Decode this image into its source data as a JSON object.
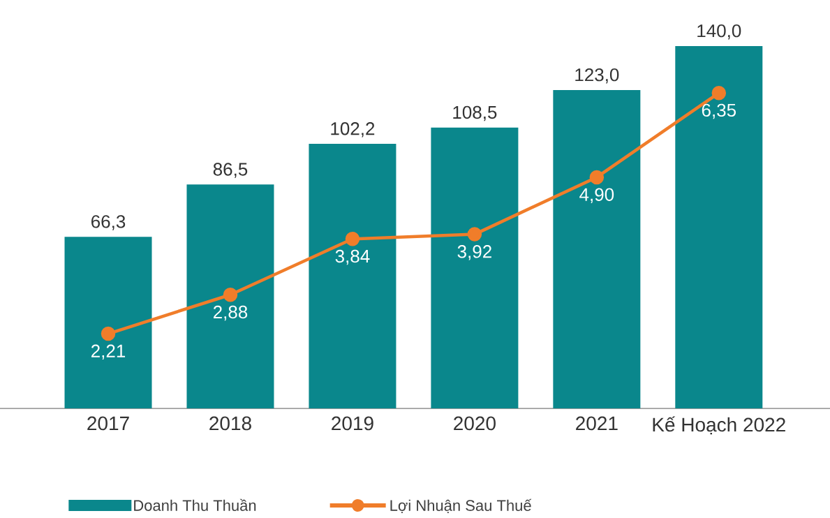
{
  "chart_data": {
    "type": "bar",
    "categories": [
      "2017",
      "2018",
      "2019",
      "2020",
      "2021",
      "Kế Hoạch 2022"
    ],
    "series": [
      {
        "name": "Doanh Thu Thuần",
        "color": "#0a878c",
        "values": [
          66.3,
          86.5,
          102.2,
          108.5,
          123.0,
          140.0
        ],
        "value_labels": [
          "66,3",
          "86,5",
          "102,2",
          "108,5",
          "123,0",
          "140,0"
        ]
      },
      {
        "name": "Lợi Nhuận Sau Thuế",
        "type": "line",
        "axis": "y2",
        "color": "#f07d2a",
        "marker": "circle",
        "line_style": "solid",
        "values": [
          2.21,
          2.88,
          3.84,
          3.92,
          4.9,
          6.35
        ],
        "value_labels": [
          "2,21",
          "2,88",
          "3,84",
          "3,92",
          "4,90",
          "6,35"
        ]
      }
    ],
    "tick_labels": "x",
    "grid": false,
    "legend": "bottom"
  }
}
